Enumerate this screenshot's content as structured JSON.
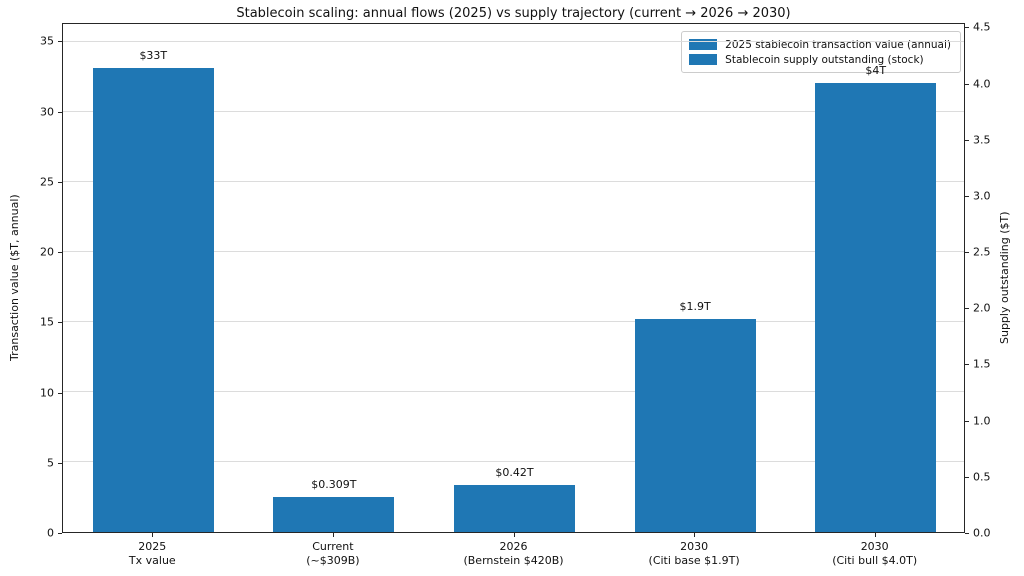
{
  "chart_data": {
    "type": "bar",
    "title": "Stablecoin scaling: annual flows (2025) vs supply trajectory (current → 2026 → 2030)",
    "ylabel_left": "Transaction value ($T, annual)",
    "ylabel_right": "Supply outstanding ($T)",
    "ylim_left": [
      0,
      36.3
    ],
    "ylim_right": [
      0,
      4.54
    ],
    "yticks_left": [
      "0",
      "5",
      "10",
      "15",
      "20",
      "25",
      "30",
      "35"
    ],
    "yticks_right": [
      "0.0",
      "0.5",
      "1.0",
      "1.5",
      "2.0",
      "2.5",
      "3.0",
      "3.5",
      "4.0",
      "4.5"
    ],
    "grid": true,
    "bar_color": "#1f77b4",
    "legend": {
      "position": "upper right",
      "entries": [
        {
          "label": "2025 stablecoin transaction value (annual)",
          "color": "#1f77b4"
        },
        {
          "label": "Stablecoin supply outstanding (stock)",
          "color": "#1f77b4"
        }
      ]
    },
    "bars": [
      {
        "category": [
          "2025",
          "Tx value"
        ],
        "value": 33,
        "axis": "left",
        "annotation": "$33T"
      },
      {
        "category": [
          "Current",
          "(~$309B)"
        ],
        "value": 0.309,
        "axis": "right",
        "annotation": "$0.309T"
      },
      {
        "category": [
          "2026",
          "(Bernstein $420B)"
        ],
        "value": 0.42,
        "axis": "right",
        "annotation": "$0.42T"
      },
      {
        "category": [
          "2030",
          "(Citi base $1.9T)"
        ],
        "value": 1.9,
        "axis": "right",
        "annotation": "$1.9T"
      },
      {
        "category": [
          "2030",
          "(Citi bull $4.0T)"
        ],
        "value": 4.0,
        "axis": "right",
        "annotation": "$4T"
      }
    ]
  }
}
